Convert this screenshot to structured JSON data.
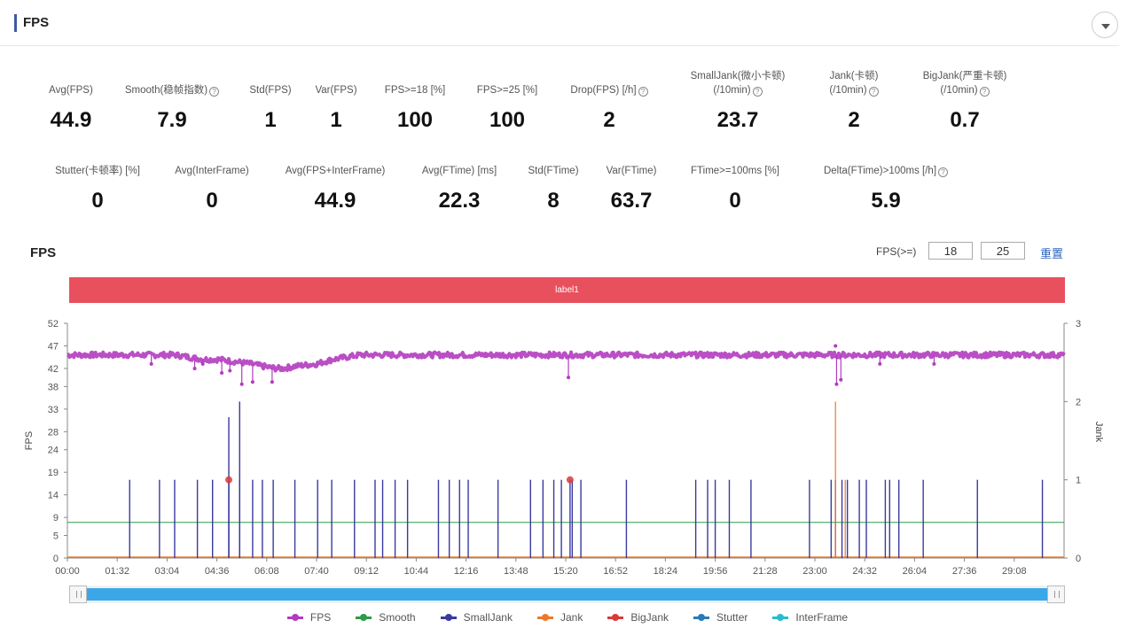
{
  "header": {
    "title": "FPS"
  },
  "stats_row1": [
    {
      "label": "Avg(FPS)",
      "help": false,
      "value": "44.9",
      "cx": 80
    },
    {
      "label": "Smooth(稳帧指数)",
      "help": true,
      "value": "7.9",
      "cx": 194
    },
    {
      "label": "Std(FPS)",
      "help": false,
      "value": "1",
      "cx": 305
    },
    {
      "label": "Var(FPS)",
      "help": false,
      "value": "1",
      "cx": 379
    },
    {
      "label": "FPS>=18 [%]",
      "help": false,
      "value": "100",
      "cx": 468
    },
    {
      "label": "FPS>=25 [%]",
      "help": false,
      "value": "100",
      "cx": 572
    },
    {
      "label": "Drop(FPS) [/h]",
      "help": true,
      "value": "2",
      "cx": 687
    },
    {
      "label": "SmallJank(微小卡顿)",
      "label2": "(/10min)",
      "help": true,
      "value": "23.7",
      "cx": 832
    },
    {
      "label": "Jank(卡顿)",
      "label2": "(/10min)",
      "help": true,
      "value": "2",
      "cx": 963
    },
    {
      "label": "BigJank(严重卡顿)",
      "label2": "(/10min)",
      "help": true,
      "value": "0.7",
      "cx": 1088
    }
  ],
  "stats_row2": [
    {
      "label": "Stutter(卡顿率) [%]",
      "help": false,
      "value": "0",
      "cx": 110
    },
    {
      "label": "Avg(InterFrame)",
      "help": false,
      "value": "0",
      "cx": 239
    },
    {
      "label": "Avg(FPS+InterFrame)",
      "help": false,
      "value": "44.9",
      "cx": 378
    },
    {
      "label": "Avg(FTime) [ms]",
      "help": false,
      "value": "22.3",
      "cx": 518
    },
    {
      "label": "Std(FTime)",
      "help": false,
      "value": "8",
      "cx": 624
    },
    {
      "label": "Var(FTime)",
      "help": false,
      "value": "63.7",
      "cx": 712
    },
    {
      "label": "FTime>=100ms [%]",
      "help": false,
      "value": "0",
      "cx": 829
    },
    {
      "label": "Delta(FTime)>100ms [/h]",
      "help": true,
      "value": "5.9",
      "cx": 999
    }
  ],
  "section": {
    "title": "FPS",
    "threshold_label": "FPS(>=)",
    "threshold1": "18",
    "threshold2": "25",
    "reset_label": "重置"
  },
  "label_band": "label1",
  "colors": {
    "fps": "#b23cbf",
    "smooth": "#2e9a4a",
    "smalljank": "#3a3aa0",
    "jank": "#ea7a2c",
    "bigjank": "#d93b3b",
    "stutter": "#2a7ab8",
    "interframe": "#2bbbd0",
    "band": "#e8505e",
    "slider": "#3aa8e8"
  },
  "chart_data": {
    "type": "line",
    "xlabel": "",
    "ylabel": "FPS",
    "y2label": "Jank",
    "ylim": [
      0,
      52
    ],
    "y2lim": [
      0,
      3
    ],
    "yticks": [
      0,
      5,
      9,
      14,
      19,
      24,
      28,
      33,
      38,
      42,
      47,
      52
    ],
    "y2ticks": [
      0,
      1,
      2,
      3
    ],
    "xlim_sec": [
      0,
      1840
    ],
    "xtick_labels": [
      "00:00",
      "01:32",
      "03:04",
      "04:36",
      "06:08",
      "07:40",
      "09:12",
      "10:44",
      "12:16",
      "13:48",
      "15:20",
      "16:52",
      "18:24",
      "19:56",
      "21:28",
      "23:00",
      "24:32",
      "26:04",
      "27:36",
      "29:08"
    ],
    "legend": [
      "FPS",
      "Smooth",
      "SmallJank",
      "Jank",
      "BigJank",
      "Stutter",
      "InterFrame"
    ],
    "legend_position": "bottom",
    "fps_series": {
      "t": [
        0,
        200,
        250,
        280,
        310,
        340,
        360,
        385,
        400,
        420,
        460,
        490,
        540,
        900,
        920,
        940,
        1400,
        1420,
        1440,
        1460,
        1840
      ],
      "fps": [
        45,
        45,
        44,
        44,
        43.5,
        43,
        42.5,
        42,
        42,
        42.5,
        43,
        44,
        45,
        45,
        45,
        45,
        45,
        45,
        45,
        45,
        45
      ],
      "dips": [
        [
          155,
          43
        ],
        [
          235,
          42
        ],
        [
          250,
          43
        ],
        [
          285,
          41
        ],
        [
          300,
          41.5
        ],
        [
          322,
          38.5
        ],
        [
          342,
          39
        ],
        [
          378,
          39
        ],
        [
          925,
          40
        ],
        [
          1420,
          38.5
        ],
        [
          1428,
          39.5
        ],
        [
          1500,
          43
        ],
        [
          1600,
          43
        ]
      ],
      "spikes": [
        [
          1418,
          47
        ]
      ]
    },
    "smooth_value": 7.9,
    "smalljank_t": [
      115,
      170,
      198,
      240,
      268,
      298,
      318,
      342,
      360,
      380,
      420,
      462,
      488,
      530,
      568,
      582,
      605,
      628,
      685,
      705,
      724,
      740,
      795,
      855,
      878,
      898,
      912,
      932,
      948,
      1032,
      1160,
      1182,
      1196,
      1222,
      1262,
      1370,
      1410,
      1418,
      1430,
      1440,
      1462,
      1475,
      1510,
      1518,
      1535,
      1580,
      1680,
      1800
    ],
    "jank_t": [
      1418,
      1436
    ],
    "jank_values": [
      2.0,
      1.0
    ],
    "bigjank_t": [
      298,
      928
    ],
    "bigjank_values": [
      1.0,
      1.0
    ],
    "tall_jank_lines": [
      [
        298,
        1.8
      ],
      [
        318,
        2.0
      ],
      [
        928,
        1.0
      ]
    ]
  },
  "slider": {
    "start": 0,
    "end": 1
  }
}
